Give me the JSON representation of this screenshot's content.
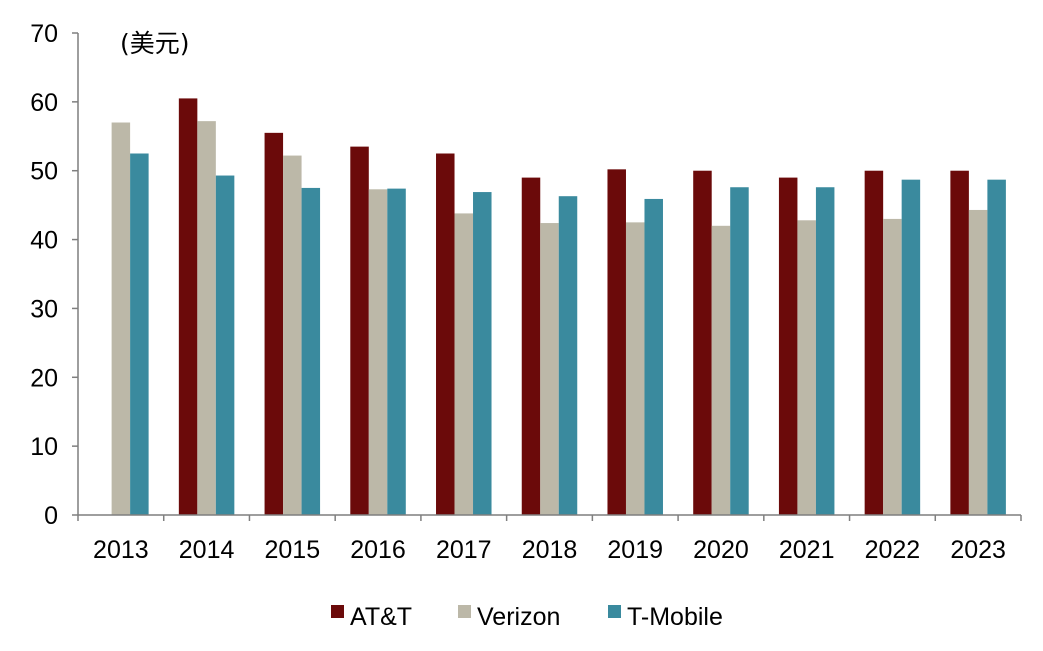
{
  "chart_data": {
    "type": "bar",
    "title": "",
    "unit_label": "(美元)",
    "xlabel": "",
    "ylabel": "",
    "ylim": [
      0,
      70
    ],
    "yticks": [
      0,
      10,
      20,
      30,
      40,
      50,
      60,
      70
    ],
    "grid": false,
    "legend_position": "bottom",
    "categories": [
      "2013",
      "2014",
      "2015",
      "2016",
      "2017",
      "2018",
      "2019",
      "2020",
      "2021",
      "2022",
      "2023"
    ],
    "series": [
      {
        "name": "AT&T",
        "color": "#6b0a0a",
        "values": [
          null,
          60.5,
          55.5,
          53.5,
          52.5,
          49,
          50.2,
          50,
          49,
          50,
          50
        ]
      },
      {
        "name": "Verizon",
        "color": "#bcb8a8",
        "values": [
          57,
          57.2,
          52.2,
          47.3,
          43.8,
          42.4,
          42.5,
          42,
          42.8,
          43,
          44.3
        ]
      },
      {
        "name": "T-Mobile",
        "color": "#3a8a9e",
        "values": [
          52.5,
          49.3,
          47.5,
          47.4,
          46.9,
          46.3,
          45.9,
          47.6,
          47.6,
          48.7,
          48.7
        ]
      }
    ]
  }
}
